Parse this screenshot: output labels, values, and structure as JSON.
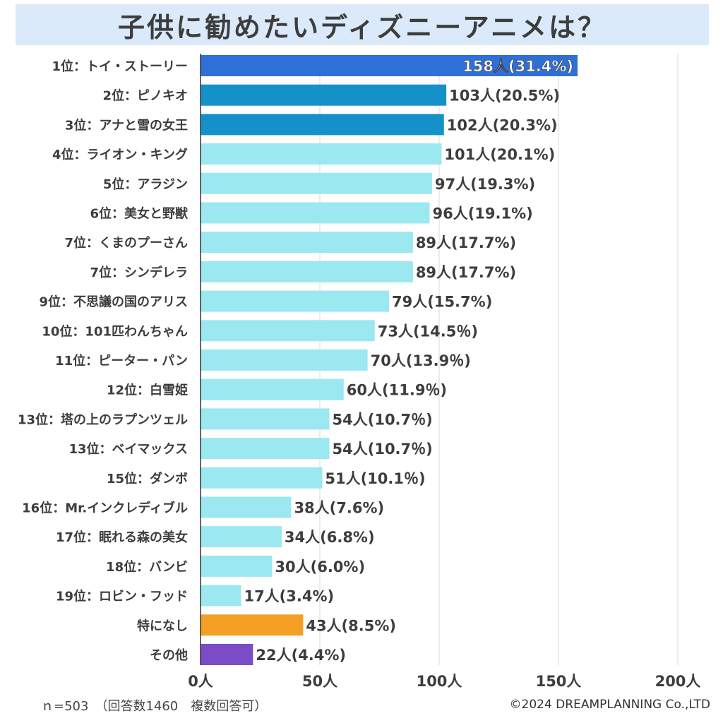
{
  "title": "子供に勧めたいディズニーアニメは？",
  "footer": {
    "note": "ｎ=503　（回答数1460　複数回答可）",
    "copyright": "©2024 DREAMPLANNING Co.,LTD"
  },
  "colors": {
    "rank1": "#2f6fd8",
    "rank2_3": "#1591c9",
    "default": "#9be8f0",
    "none": "#f4a024",
    "other": "#7a4cc8",
    "grid": "#d8d8d8",
    "axis": "#333333",
    "text": "#3d3d3d",
    "title_bg": "#dbeafa"
  },
  "chart_data": {
    "type": "bar",
    "orientation": "horizontal",
    "title": "子供に勧めたいディズニーアニメは？",
    "xlabel": "",
    "ylabel": "",
    "xlim": [
      0,
      200
    ],
    "x_ticks": [
      0,
      50,
      100,
      150,
      200
    ],
    "x_tick_labels": [
      "0人",
      "50人",
      "100人",
      "150人",
      "200人"
    ],
    "grid": true,
    "categories": [
      "1位：トイ・ストーリー",
      "2位：ピノキオ",
      "3位：アナと雪の女王",
      "4位：ライオン・キング",
      "5位：アラジン",
      "6位：美女と野獣",
      "7位：くまのプーさん",
      "7位：シンデレラ",
      "9位：不思議の国のアリス",
      "10位：101匹わんちゃん",
      "11位：ピーター・パン",
      "12位：白雪姫",
      "13位：塔の上のラプンツェル",
      "13位：ベイマックス",
      "15位：ダンボ",
      "16位：Mr.インクレディブル",
      "17位：眠れる森の美女",
      "18位：バンビ",
      "19位：ロビン・フッド",
      "特になし",
      "その他"
    ],
    "values": [
      158,
      103,
      102,
      101,
      97,
      96,
      89,
      89,
      79,
      73,
      70,
      60,
      54,
      54,
      51,
      38,
      34,
      30,
      17,
      43,
      22
    ],
    "data_labels": [
      "158人(31.4%)",
      "103人(20.5%)",
      "102人(20.3%)",
      "101人(20.1%)",
      "97人(19.3%)",
      "96人(19.1%)",
      "89人(17.7%)",
      "89人(17.7%)",
      "79人(15.7%)",
      "73人(14.5％)",
      "70人(13.9％)",
      "60人(11.9％)",
      "54人(10.7％)",
      "54人(10.7％)",
      "51人(10.1％)",
      "38人(7.6%)",
      "34人(6.8%)",
      "30人(6.0%)",
      "17人(3.4%)",
      "43人(8.5%)",
      "22人(4.4%)"
    ],
    "bar_color_keys": [
      "rank1",
      "rank2_3",
      "rank2_3",
      "default",
      "default",
      "default",
      "default",
      "default",
      "default",
      "default",
      "default",
      "default",
      "default",
      "default",
      "default",
      "default",
      "default",
      "default",
      "default",
      "none",
      "other"
    ]
  }
}
